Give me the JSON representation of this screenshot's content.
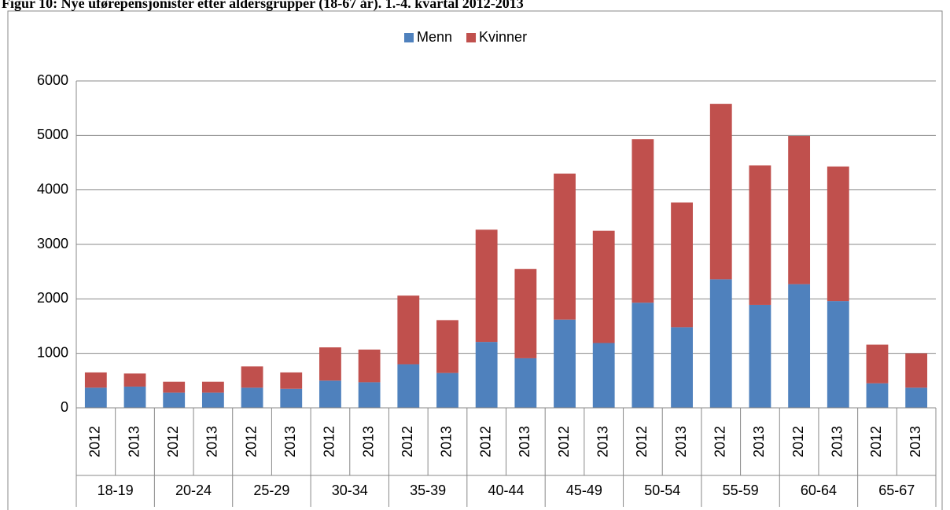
{
  "chart_data": {
    "type": "stacked_bar",
    "title": "Figur 10: Nye uførepensjonister etter aldersgrupper (18-67 år). 1.-4. kvartal 2012-2013",
    "categories": [
      "2012",
      "2013",
      "2012",
      "2013",
      "2012",
      "2013",
      "2012",
      "2013",
      "2012",
      "2013",
      "2012",
      "2013",
      "2012",
      "2013",
      "2012",
      "2013",
      "2012",
      "2013",
      "2012",
      "2013",
      "2012",
      "2013"
    ],
    "groups": [
      "18-19",
      "20-24",
      "25-29",
      "30-34",
      "35-39",
      "40-44",
      "45-49",
      "50-54",
      "55-59",
      "60-64",
      "65-67"
    ],
    "series": [
      {
        "name": "Menn",
        "color": "#4f81bd",
        "values": [
          370,
          390,
          280,
          280,
          370,
          350,
          500,
          470,
          800,
          640,
          1210,
          910,
          1620,
          1190,
          1930,
          1480,
          2360,
          1890,
          2270,
          1960,
          450,
          370
        ]
      },
      {
        "name": "Kvinner",
        "color": "#c0504d",
        "values": [
          280,
          240,
          200,
          200,
          390,
          300,
          610,
          600,
          1260,
          970,
          2060,
          1640,
          2680,
          2060,
          3000,
          2290,
          3220,
          2560,
          2720,
          2470,
          710,
          630
        ]
      }
    ],
    "ylim": [
      0,
      6000
    ],
    "yticks": [
      0,
      1000,
      2000,
      3000,
      4000,
      5000,
      6000
    ],
    "grid": true,
    "legend": "top"
  }
}
